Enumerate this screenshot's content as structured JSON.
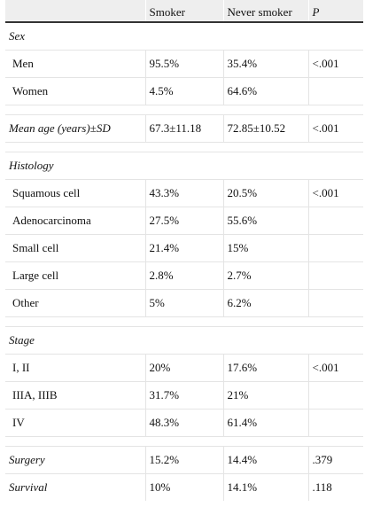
{
  "header": {
    "col1": "",
    "col2": "Smoker",
    "col3": "Never smoker",
    "col4": "P"
  },
  "sex": {
    "title": "Sex",
    "rows": [
      {
        "label": "Men",
        "smoker": "95.5%",
        "never": "35.4%",
        "p": "<.001"
      },
      {
        "label": "Women",
        "smoker": "4.5%",
        "never": "64.6%",
        "p": ""
      }
    ]
  },
  "age": {
    "label": "Mean age (years)±SD",
    "smoker": "67.3±11.18",
    "never": "72.85±10.52",
    "p": "<.001"
  },
  "histology": {
    "title": "Histology",
    "rows": [
      {
        "label": "Squamous cell",
        "smoker": "43.3%",
        "never": "20.5%",
        "p": "<.001"
      },
      {
        "label": "Adenocarcinoma",
        "smoker": "27.5%",
        "never": "55.6%",
        "p": ""
      },
      {
        "label": "Small cell",
        "smoker": "21.4%",
        "never": "15%",
        "p": ""
      },
      {
        "label": "Large cell",
        "smoker": "2.8%",
        "never": "2.7%",
        "p": ""
      },
      {
        "label": "Other",
        "smoker": "5%",
        "never": "6.2%",
        "p": ""
      }
    ]
  },
  "stage": {
    "title": "Stage",
    "rows": [
      {
        "label": "I, II",
        "smoker": "20%",
        "never": "17.6%",
        "p": "<.001"
      },
      {
        "label": "IIIA, IIIB",
        "smoker": "31.7%",
        "never": "21%",
        "p": ""
      },
      {
        "label": "IV",
        "smoker": "48.3%",
        "never": "61.4%",
        "p": ""
      }
    ]
  },
  "surgery": {
    "label": "Surgery",
    "smoker": "15.2%",
    "never": "14.4%",
    "p": ".379"
  },
  "survival": {
    "label": "Survival",
    "smoker": "10%",
    "never": "14.1%",
    "p": ".118"
  }
}
